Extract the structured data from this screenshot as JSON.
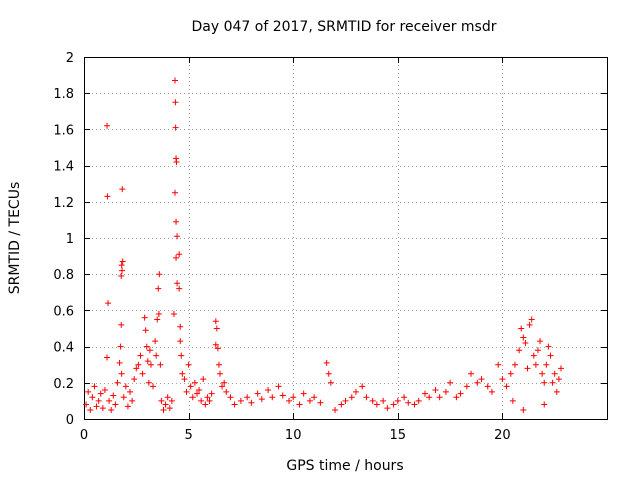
{
  "chart_data": {
    "type": "scatter",
    "title": "Day 047 of 2017, SRMTID for receiver msdr",
    "xlabel": "GPS time / hours",
    "ylabel": "SRMTID / TECUs",
    "xlim": [
      0,
      25
    ],
    "ylim": [
      0,
      2
    ],
    "xticks": [
      0,
      5,
      10,
      15,
      20
    ],
    "xtick_labels": [
      "0",
      "5",
      "10",
      "15",
      "20"
    ],
    "yticks": [
      0,
      0.2,
      0.4,
      0.6,
      0.8,
      1,
      1.2,
      1.4,
      1.6,
      1.8,
      2
    ],
    "ytick_labels": [
      "0",
      "0.2",
      "0.4",
      "0.6",
      "0.8",
      "1",
      "1.2",
      "1.4",
      "1.6",
      "1.8",
      "2"
    ],
    "grid": true,
    "marker": "+",
    "color": "#ff0000",
    "series": [
      {
        "name": "msdr",
        "points": [
          [
            0.1,
            0.08
          ],
          [
            0.2,
            0.15
          ],
          [
            0.3,
            0.05
          ],
          [
            0.4,
            0.12
          ],
          [
            0.5,
            0.18
          ],
          [
            0.6,
            0.07
          ],
          [
            0.7,
            0.1
          ],
          [
            0.8,
            0.14
          ],
          [
            0.9,
            0.06
          ],
          [
            1.0,
            0.16
          ],
          [
            1.1,
            1.62
          ],
          [
            1.12,
            1.23
          ],
          [
            1.15,
            0.64
          ],
          [
            1.1,
            0.34
          ],
          [
            1.2,
            0.1
          ],
          [
            1.3,
            0.05
          ],
          [
            1.4,
            0.13
          ],
          [
            1.5,
            0.08
          ],
          [
            1.6,
            0.2
          ],
          [
            1.7,
            0.31
          ],
          [
            1.75,
            0.4
          ],
          [
            1.78,
            0.52
          ],
          [
            1.8,
            0.85
          ],
          [
            1.82,
            0.82
          ],
          [
            1.85,
            0.87
          ],
          [
            1.83,
            1.27
          ],
          [
            1.78,
            0.79
          ],
          [
            1.8,
            0.25
          ],
          [
            1.9,
            0.12
          ],
          [
            2.0,
            0.18
          ],
          [
            2.1,
            0.07
          ],
          [
            2.2,
            0.15
          ],
          [
            2.3,
            0.1
          ],
          [
            2.4,
            0.22
          ],
          [
            2.5,
            0.28
          ],
          [
            2.6,
            0.3
          ],
          [
            2.7,
            0.35
          ],
          [
            2.8,
            0.25
          ],
          [
            2.9,
            0.56
          ],
          [
            2.95,
            0.49
          ],
          [
            3.0,
            0.4
          ],
          [
            3.05,
            0.32
          ],
          [
            3.1,
            0.2
          ],
          [
            3.15,
            0.38
          ],
          [
            3.2,
            0.3
          ],
          [
            3.3,
            0.18
          ],
          [
            3.4,
            0.43
          ],
          [
            3.45,
            0.35
          ],
          [
            3.5,
            0.55
          ],
          [
            3.55,
            0.72
          ],
          [
            3.6,
            0.8
          ],
          [
            3.58,
            0.58
          ],
          [
            3.65,
            0.3
          ],
          [
            3.7,
            0.1
          ],
          [
            3.8,
            0.05
          ],
          [
            3.9,
            0.08
          ],
          [
            4.0,
            0.12
          ],
          [
            4.1,
            0.06
          ],
          [
            4.2,
            0.1
          ],
          [
            4.3,
            0.58
          ],
          [
            4.35,
            1.87
          ],
          [
            4.37,
            1.75
          ],
          [
            4.38,
            1.61
          ],
          [
            4.4,
            1.44
          ],
          [
            4.42,
            1.42
          ],
          [
            4.35,
            1.25
          ],
          [
            4.4,
            1.09
          ],
          [
            4.45,
            1.01
          ],
          [
            4.4,
            0.89
          ],
          [
            4.45,
            0.75
          ],
          [
            4.55,
            0.91
          ],
          [
            4.55,
            0.72
          ],
          [
            4.6,
            0.51
          ],
          [
            4.6,
            0.43
          ],
          [
            4.65,
            0.35
          ],
          [
            4.7,
            0.25
          ],
          [
            4.8,
            0.22
          ],
          [
            4.9,
            0.15
          ],
          [
            5.0,
            0.3
          ],
          [
            5.1,
            0.18
          ],
          [
            5.2,
            0.12
          ],
          [
            5.3,
            0.2
          ],
          [
            5.4,
            0.14
          ],
          [
            5.5,
            0.16
          ],
          [
            5.6,
            0.1
          ],
          [
            5.7,
            0.22
          ],
          [
            5.8,
            0.08
          ],
          [
            5.9,
            0.12
          ],
          [
            6.0,
            0.1
          ],
          [
            6.1,
            0.14
          ],
          [
            6.3,
            0.54
          ],
          [
            6.35,
            0.5
          ],
          [
            6.3,
            0.41
          ],
          [
            6.4,
            0.39
          ],
          [
            6.45,
            0.3
          ],
          [
            6.5,
            0.25
          ],
          [
            6.6,
            0.18
          ],
          [
            6.7,
            0.2
          ],
          [
            6.8,
            0.15
          ],
          [
            7.0,
            0.12
          ],
          [
            7.2,
            0.08
          ],
          [
            7.5,
            0.1
          ],
          [
            7.8,
            0.12
          ],
          [
            8.0,
            0.09
          ],
          [
            8.3,
            0.14
          ],
          [
            8.5,
            0.11
          ],
          [
            8.8,
            0.16
          ],
          [
            9.0,
            0.12
          ],
          [
            9.3,
            0.18
          ],
          [
            9.5,
            0.13
          ],
          [
            9.8,
            0.1
          ],
          [
            10.0,
            0.12
          ],
          [
            10.3,
            0.08
          ],
          [
            10.5,
            0.14
          ],
          [
            10.8,
            0.1
          ],
          [
            11.0,
            0.12
          ],
          [
            11.3,
            0.09
          ],
          [
            11.6,
            0.31
          ],
          [
            11.7,
            0.25
          ],
          [
            11.8,
            0.2
          ],
          [
            12.0,
            0.05
          ],
          [
            12.3,
            0.08
          ],
          [
            12.5,
            0.1
          ],
          [
            12.8,
            0.12
          ],
          [
            13.0,
            0.15
          ],
          [
            13.3,
            0.18
          ],
          [
            13.5,
            0.12
          ],
          [
            13.8,
            0.1
          ],
          [
            14.0,
            0.08
          ],
          [
            14.3,
            0.1
          ],
          [
            14.5,
            0.06
          ],
          [
            14.8,
            0.08
          ],
          [
            15.0,
            0.1
          ],
          [
            15.3,
            0.12
          ],
          [
            15.5,
            0.09
          ],
          [
            15.8,
            0.08
          ],
          [
            16.0,
            0.1
          ],
          [
            16.3,
            0.14
          ],
          [
            16.5,
            0.12
          ],
          [
            16.8,
            0.16
          ],
          [
            17.0,
            0.12
          ],
          [
            17.3,
            0.15
          ],
          [
            17.5,
            0.2
          ],
          [
            17.8,
            0.12
          ],
          [
            18.0,
            0.14
          ],
          [
            18.3,
            0.18
          ],
          [
            18.5,
            0.25
          ],
          [
            18.8,
            0.2
          ],
          [
            19.0,
            0.22
          ],
          [
            19.3,
            0.18
          ],
          [
            19.5,
            0.15
          ],
          [
            19.8,
            0.3
          ],
          [
            20.0,
            0.22
          ],
          [
            20.2,
            0.18
          ],
          [
            20.4,
            0.25
          ],
          [
            20.6,
            0.3
          ],
          [
            20.8,
            0.38
          ],
          [
            20.9,
            0.5
          ],
          [
            21.0,
            0.45
          ],
          [
            21.1,
            0.42
          ],
          [
            21.2,
            0.28
          ],
          [
            21.3,
            0.52
          ],
          [
            21.4,
            0.55
          ],
          [
            21.5,
            0.35
          ],
          [
            21.6,
            0.3
          ],
          [
            21.7,
            0.38
          ],
          [
            21.8,
            0.43
          ],
          [
            21.9,
            0.25
          ],
          [
            22.0,
            0.2
          ],
          [
            22.1,
            0.3
          ],
          [
            22.2,
            0.4
          ],
          [
            22.3,
            0.35
          ],
          [
            22.4,
            0.2
          ],
          [
            22.5,
            0.25
          ],
          [
            22.6,
            0.15
          ],
          [
            22.7,
            0.22
          ],
          [
            22.8,
            0.28
          ],
          [
            20.5,
            0.1
          ],
          [
            21.0,
            0.05
          ],
          [
            22.0,
            0.08
          ]
        ]
      }
    ]
  }
}
